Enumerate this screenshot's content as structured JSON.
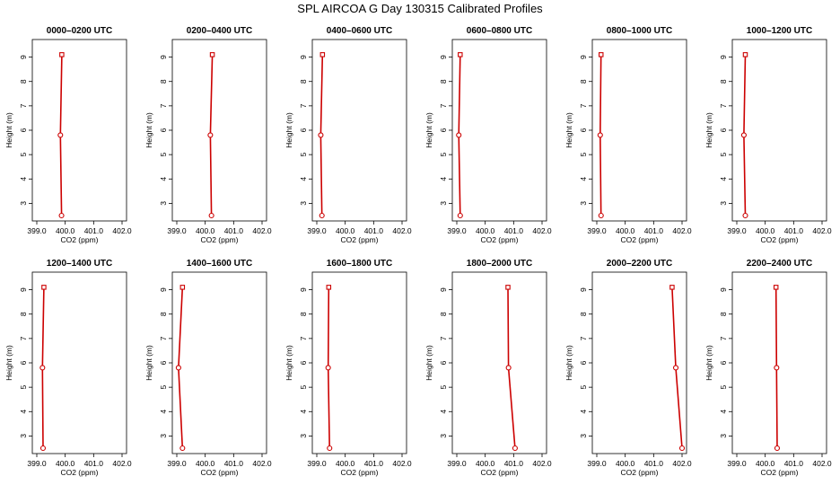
{
  "figure": {
    "title": "SPL AIRCOA G  Day 130315  Calibrated Profiles"
  },
  "style": {
    "series_color": "#cc0000",
    "axis_color": "#000000"
  },
  "chart_data": [
    {
      "type": "line",
      "title": "0000–0200 UTC",
      "xlabel": "CO2 (ppm)",
      "ylabel": "Height (m)",
      "xlim": [
        399.0,
        402.0
      ],
      "ylim": [
        2.5,
        9.5
      ],
      "xticks": [
        "399.0",
        "400.0",
        "401.0",
        "402.0"
      ],
      "yticks": [
        "3",
        "4",
        "5",
        "6",
        "7",
        "8",
        "9"
      ],
      "grid": false,
      "points": [
        {
          "x": 399.88,
          "y": 9.1
        },
        {
          "x": 399.83,
          "y": 5.8
        },
        {
          "x": 399.87,
          "y": 2.5
        }
      ]
    },
    {
      "type": "line",
      "title": "0200–0400 UTC",
      "xlabel": "CO2 (ppm)",
      "ylabel": "Height (m)",
      "xlim": [
        399.0,
        402.0
      ],
      "ylim": [
        2.5,
        9.5
      ],
      "xticks": [
        "399.0",
        "400.0",
        "401.0",
        "402.0"
      ],
      "yticks": [
        "3",
        "4",
        "5",
        "6",
        "7",
        "8",
        "9"
      ],
      "grid": false,
      "points": [
        {
          "x": 400.25,
          "y": 9.1
        },
        {
          "x": 400.18,
          "y": 5.8
        },
        {
          "x": 400.22,
          "y": 2.5
        }
      ]
    },
    {
      "type": "line",
      "title": "0400–0600 UTC",
      "xlabel": "CO2 (ppm)",
      "ylabel": "Height (m)",
      "xlim": [
        399.0,
        402.0
      ],
      "ylim": [
        2.5,
        9.5
      ],
      "xticks": [
        "399.0",
        "400.0",
        "401.0",
        "402.0"
      ],
      "yticks": [
        "3",
        "4",
        "5",
        "6",
        "7",
        "8",
        "9"
      ],
      "grid": false,
      "points": [
        {
          "x": 399.2,
          "y": 9.1
        },
        {
          "x": 399.14,
          "y": 5.8
        },
        {
          "x": 399.18,
          "y": 2.5
        }
      ]
    },
    {
      "type": "line",
      "title": "0600–0800 UTC",
      "xlabel": "CO2 (ppm)",
      "ylabel": "Height (m)",
      "xlim": [
        399.0,
        402.0
      ],
      "ylim": [
        2.5,
        9.5
      ],
      "xticks": [
        "399.0",
        "400.0",
        "401.0",
        "402.0"
      ],
      "yticks": [
        "3",
        "4",
        "5",
        "6",
        "7",
        "8",
        "9"
      ],
      "grid": false,
      "points": [
        {
          "x": 399.12,
          "y": 9.1
        },
        {
          "x": 399.07,
          "y": 5.8
        },
        {
          "x": 399.12,
          "y": 2.5
        }
      ]
    },
    {
      "type": "line",
      "title": "0800–1000 UTC",
      "xlabel": "CO2 (ppm)",
      "ylabel": "Height (m)",
      "xlim": [
        399.0,
        402.0
      ],
      "ylim": [
        2.5,
        9.5
      ],
      "xticks": [
        "399.0",
        "400.0",
        "401.0",
        "402.0"
      ],
      "yticks": [
        "3",
        "4",
        "5",
        "6",
        "7",
        "8",
        "9"
      ],
      "grid": false,
      "points": [
        {
          "x": 399.15,
          "y": 9.1
        },
        {
          "x": 399.12,
          "y": 5.8
        },
        {
          "x": 399.15,
          "y": 2.5
        }
      ]
    },
    {
      "type": "line",
      "title": "1000–1200 UTC",
      "xlabel": "CO2 (ppm)",
      "ylabel": "Height (m)",
      "xlim": [
        399.0,
        402.0
      ],
      "ylim": [
        2.5,
        9.5
      ],
      "xticks": [
        "399.0",
        "400.0",
        "401.0",
        "402.0"
      ],
      "yticks": [
        "3",
        "4",
        "5",
        "6",
        "7",
        "8",
        "9"
      ],
      "grid": false,
      "points": [
        {
          "x": 399.3,
          "y": 9.1
        },
        {
          "x": 399.25,
          "y": 5.8
        },
        {
          "x": 399.3,
          "y": 2.5
        }
      ]
    },
    {
      "type": "line",
      "title": "1200–1400 UTC",
      "xlabel": "CO2 (ppm)",
      "ylabel": "Height (m)",
      "xlim": [
        399.0,
        402.0
      ],
      "ylim": [
        2.5,
        9.5
      ],
      "xticks": [
        "399.0",
        "400.0",
        "401.0",
        "402.0"
      ],
      "yticks": [
        "3",
        "4",
        "5",
        "6",
        "7",
        "8",
        "9"
      ],
      "grid": false,
      "points": [
        {
          "x": 399.25,
          "y": 9.1
        },
        {
          "x": 399.2,
          "y": 5.8
        },
        {
          "x": 399.22,
          "y": 2.5
        }
      ]
    },
    {
      "type": "line",
      "title": "1400–1600 UTC",
      "xlabel": "CO2 (ppm)",
      "ylabel": "Height (m)",
      "xlim": [
        399.0,
        402.0
      ],
      "ylim": [
        2.5,
        9.5
      ],
      "xticks": [
        "399.0",
        "400.0",
        "401.0",
        "402.0"
      ],
      "yticks": [
        "3",
        "4",
        "5",
        "6",
        "7",
        "8",
        "9"
      ],
      "grid": false,
      "points": [
        {
          "x": 399.2,
          "y": 9.1
        },
        {
          "x": 399.06,
          "y": 5.8
        },
        {
          "x": 399.2,
          "y": 2.5
        }
      ]
    },
    {
      "type": "line",
      "title": "1600–1800 UTC",
      "xlabel": "CO2 (ppm)",
      "ylabel": "Height (m)",
      "xlim": [
        399.0,
        402.0
      ],
      "ylim": [
        2.5,
        9.5
      ],
      "xticks": [
        "399.0",
        "400.0",
        "401.0",
        "402.0"
      ],
      "yticks": [
        "3",
        "4",
        "5",
        "6",
        "7",
        "8",
        "9"
      ],
      "grid": false,
      "points": [
        {
          "x": 399.42,
          "y": 9.1
        },
        {
          "x": 399.4,
          "y": 5.8
        },
        {
          "x": 399.45,
          "y": 2.5
        }
      ]
    },
    {
      "type": "line",
      "title": "1800–2000 UTC",
      "xlabel": "CO2 (ppm)",
      "ylabel": "Height (m)",
      "xlim": [
        399.0,
        402.0
      ],
      "ylim": [
        2.5,
        9.5
      ],
      "xticks": [
        "399.0",
        "400.0",
        "401.0",
        "402.0"
      ],
      "yticks": [
        "3",
        "4",
        "5",
        "6",
        "7",
        "8",
        "9"
      ],
      "grid": false,
      "points": [
        {
          "x": 400.8,
          "y": 9.1
        },
        {
          "x": 400.82,
          "y": 5.8
        },
        {
          "x": 401.05,
          "y": 2.5
        }
      ]
    },
    {
      "type": "line",
      "title": "2000–2200 UTC",
      "xlabel": "CO2 (ppm)",
      "ylabel": "Height (m)",
      "xlim": [
        399.0,
        402.0
      ],
      "ylim": [
        2.5,
        9.5
      ],
      "xticks": [
        "399.0",
        "400.0",
        "401.0",
        "402.0"
      ],
      "yticks": [
        "3",
        "4",
        "5",
        "6",
        "7",
        "8",
        "9"
      ],
      "grid": false,
      "points": [
        {
          "x": 401.65,
          "y": 9.1
        },
        {
          "x": 401.78,
          "y": 5.8
        },
        {
          "x": 402.0,
          "y": 2.5
        }
      ]
    },
    {
      "type": "line",
      "title": "2200–2400 UTC",
      "xlabel": "CO2 (ppm)",
      "ylabel": "Height (m)",
      "xlim": [
        399.0,
        402.0
      ],
      "ylim": [
        2.5,
        9.5
      ],
      "xticks": [
        "399.0",
        "400.0",
        "401.0",
        "402.0"
      ],
      "yticks": [
        "3",
        "4",
        "5",
        "6",
        "7",
        "8",
        "9"
      ],
      "grid": false,
      "points": [
        {
          "x": 400.38,
          "y": 9.1
        },
        {
          "x": 400.4,
          "y": 5.8
        },
        {
          "x": 400.42,
          "y": 2.5
        }
      ]
    }
  ]
}
